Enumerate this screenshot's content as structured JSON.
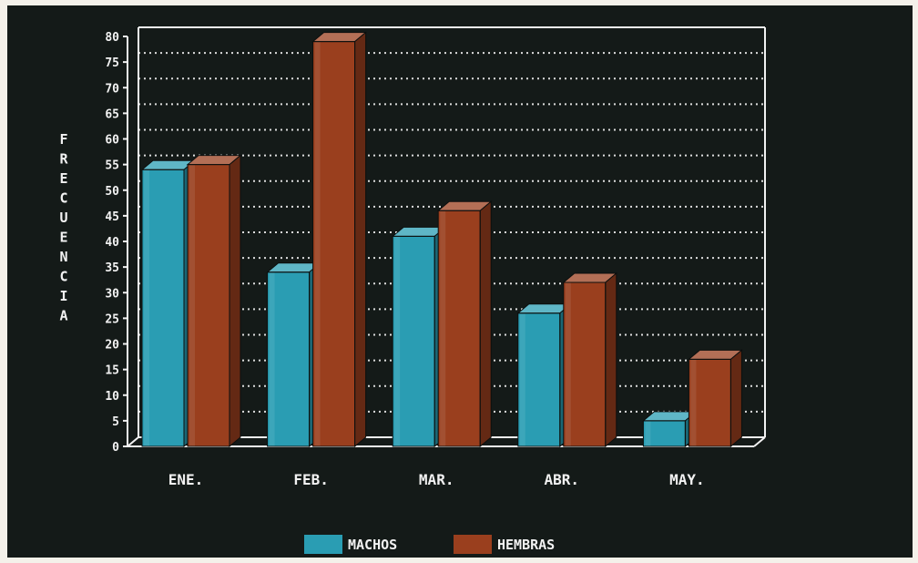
{
  "chart_data": {
    "type": "bar",
    "title": "",
    "xlabel": "",
    "ylabel": "FRECUENCIA",
    "categories": [
      "ENE.",
      "FEB.",
      "MAR.",
      "ABR.",
      "MAY."
    ],
    "series": [
      {
        "name": "MACHOS",
        "values": [
          54,
          34,
          41,
          26,
          5
        ],
        "color": "#2a9db3"
      },
      {
        "name": "HEMBRAS",
        "values": [
          55,
          79,
          46,
          32,
          17
        ],
        "color": "#9a3f1e"
      }
    ],
    "ylim": [
      0,
      80
    ],
    "yticks": [
      "0",
      "5",
      "10",
      "15",
      "20",
      "25",
      "30",
      "35",
      "40",
      "45",
      "50",
      "55",
      "60",
      "65",
      "70",
      "75",
      "80"
    ],
    "grid": true,
    "legend": "bottom",
    "background_color": "#141a18",
    "text_color": "#f2f2f2"
  }
}
